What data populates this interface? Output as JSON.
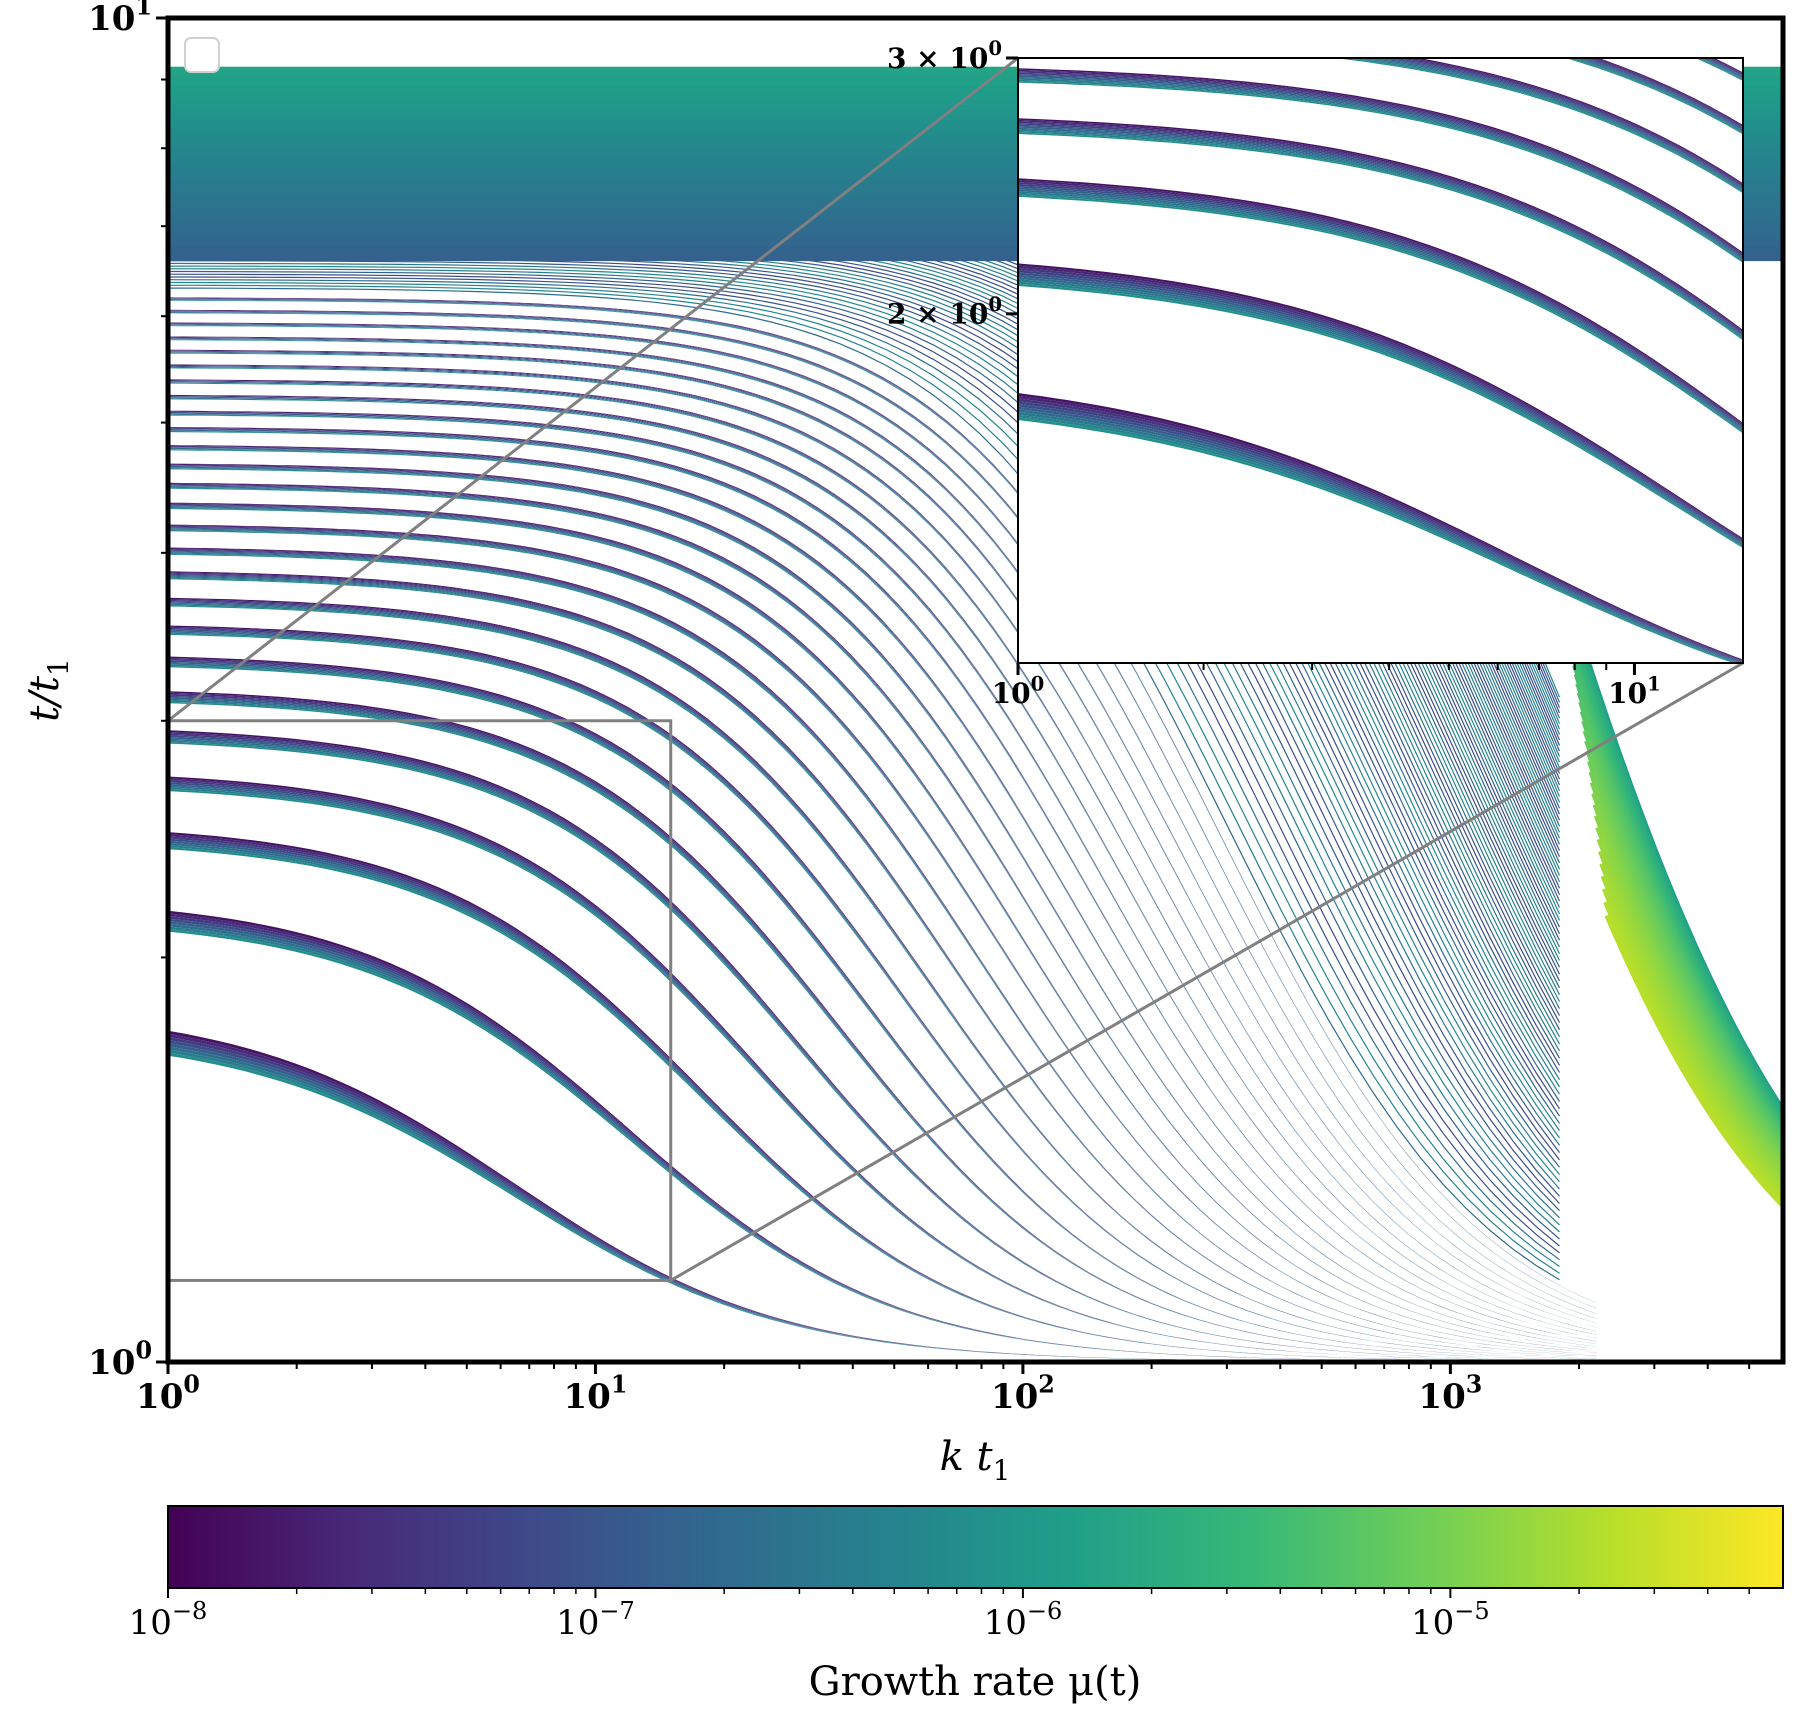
{
  "chart_data": {
    "type": "line",
    "description_free": true,
    "x_scale": "log",
    "y_scale": "log",
    "xlim": [
      1,
      6000
    ],
    "ylim": [
      1,
      10
    ],
    "xticks": [
      {
        "value": 1,
        "label": "10",
        "exp": "0"
      },
      {
        "value": 10,
        "label": "10",
        "exp": "1"
      },
      {
        "value": 100,
        "label": "10",
        "exp": "2"
      },
      {
        "value": 1000,
        "label": "10",
        "exp": "3"
      }
    ],
    "yticks": [
      {
        "value": 1,
        "label": "10",
        "exp": "0"
      },
      {
        "value": 10,
        "label": "10",
        "exp": "1"
      }
    ],
    "xlabel": "k t",
    "xlabel_sub": "1",
    "ylabel": "t/t",
    "ylabel_sub": "1",
    "legend": {
      "placement": "upper-left",
      "entries": []
    },
    "colormap": {
      "name": "viridis",
      "scale": "log",
      "range": [
        1e-08,
        6e-05
      ],
      "label": "Growth rate μ(t)",
      "ticks": [
        {
          "value": 1e-08,
          "label": "10",
          "exp": "−8"
        },
        {
          "value": 1e-07,
          "label": "10",
          "exp": "−7"
        },
        {
          "value": 1e-06,
          "label": "10",
          "exp": "−6"
        },
        {
          "value": 1e-05,
          "label": "10",
          "exp": "−5"
        }
      ],
      "stops": [
        "#440154",
        "#482878",
        "#3e4989",
        "#31688e",
        "#26828e",
        "#1f9e89",
        "#35b779",
        "#6ece58",
        "#b5de2b",
        "#fde725"
      ]
    },
    "bands": [
      {
        "t_left": 1.84,
        "t_right": 1.0,
        "k_mid": 6.5,
        "width_dex": 0.02
      },
      {
        "t_left": 2.22,
        "t_right": 1.0,
        "k_mid": 12,
        "width_dex": 0.016
      },
      {
        "t_left": 2.52,
        "t_right": 1.0,
        "k_mid": 18,
        "width_dex": 0.013
      },
      {
        "t_left": 2.76,
        "t_right": 1.0,
        "k_mid": 24,
        "width_dex": 0.011
      },
      {
        "t_left": 2.98,
        "t_right": 1.0,
        "k_mid": 30,
        "width_dex": 0.01
      },
      {
        "t_left": 3.18,
        "t_right": 1.0,
        "k_mid": 37,
        "width_dex": 0.009
      },
      {
        "t_left": 3.37,
        "t_right": 1.0,
        "k_mid": 44,
        "width_dex": 0.008
      },
      {
        "t_left": 3.55,
        "t_right": 1.0,
        "k_mid": 52,
        "width_dex": 0.007
      },
      {
        "t_left": 3.72,
        "t_right": 1.0,
        "k_mid": 60,
        "width_dex": 0.0065
      },
      {
        "t_left": 3.89,
        "t_right": 1.0,
        "k_mid": 69,
        "width_dex": 0.006
      },
      {
        "t_left": 4.05,
        "t_right": 1.0,
        "k_mid": 78,
        "width_dex": 0.0055
      },
      {
        "t_left": 4.21,
        "t_right": 1.0,
        "k_mid": 88,
        "width_dex": 0.005
      },
      {
        "t_left": 4.37,
        "t_right": 1.0,
        "k_mid": 98,
        "width_dex": 0.0048
      },
      {
        "t_left": 4.52,
        "t_right": 1.0,
        "k_mid": 109,
        "width_dex": 0.0045
      },
      {
        "t_left": 4.67,
        "t_right": 1.0,
        "k_mid": 120,
        "width_dex": 0.0043
      },
      {
        "t_left": 4.82,
        "t_right": 1.0,
        "k_mid": 132,
        "width_dex": 0.004
      },
      {
        "t_left": 4.97,
        "t_right": 1.0,
        "k_mid": 145,
        "width_dex": 0.0038
      },
      {
        "t_left": 5.11,
        "t_right": 1.0,
        "k_mid": 158,
        "width_dex": 0.0036
      },
      {
        "t_left": 5.25,
        "t_right": 1.0,
        "k_mid": 172,
        "width_dex": 0.0034
      },
      {
        "t_left": 5.39,
        "t_right": 1.0,
        "k_mid": 186,
        "width_dex": 0.0032
      },
      {
        "t_left": 5.53,
        "t_right": 1.0,
        "k_mid": 201,
        "width_dex": 0.003
      },
      {
        "t_left": 5.67,
        "t_right": 1.0,
        "k_mid": 217,
        "width_dex": 0.0029
      },
      {
        "t_left": 5.8,
        "t_right": 1.0,
        "k_mid": 233,
        "width_dex": 0.0028
      },
      {
        "t_left": 5.94,
        "t_right": 1.0,
        "k_mid": 250,
        "width_dex": 0.0027
      },
      {
        "t_left": 6.07,
        "t_right": 1.0,
        "k_mid": 268,
        "width_dex": 0.0026
      },
      {
        "t_left": 6.2,
        "t_right": 1.0,
        "k_mid": 286,
        "width_dex": 0.0025
      }
    ],
    "inset": {
      "xlim": [
        1,
        15
      ],
      "ylim": [
        1.15,
        3.0
      ],
      "x_scale": "log",
      "y_scale": "log",
      "xticks": [
        {
          "value": 1,
          "label": "10",
          "exp": "0"
        },
        {
          "value": 10,
          "label": "10",
          "exp": "1"
        }
      ],
      "yticks": [
        {
          "value": 3,
          "label": "3 × 10",
          "exp": "0"
        },
        {
          "value": 2,
          "label": "2 × 10",
          "exp": "0"
        }
      ],
      "zoom_box": {
        "x": [
          1,
          15
        ],
        "y": [
          1.15,
          3.0
        ]
      }
    }
  }
}
